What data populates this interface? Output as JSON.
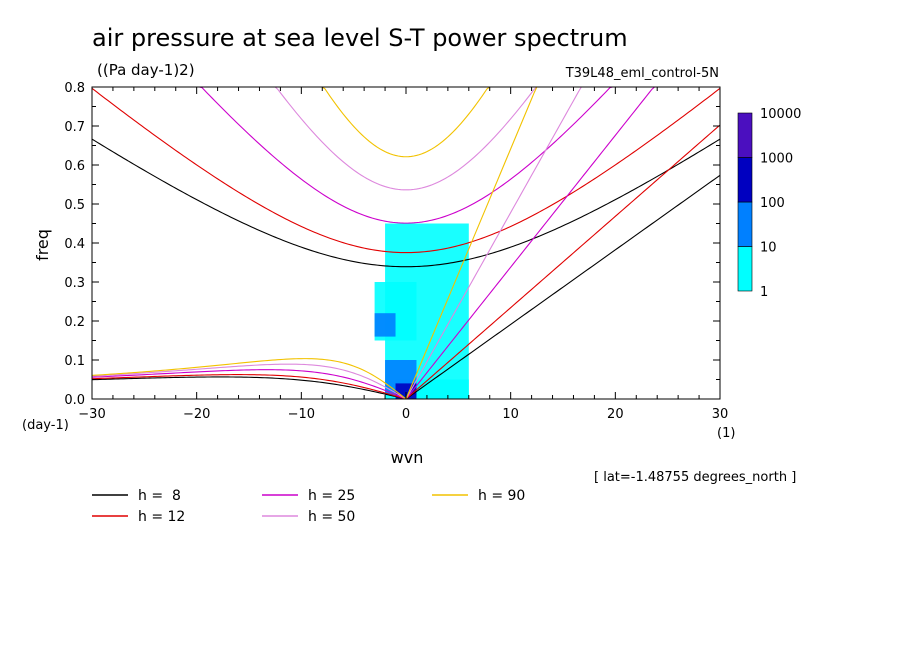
{
  "chart_data": {
    "type": "line",
    "title": "air pressure at sea level S-T power spectrum",
    "units": "((Pa day-1)2)",
    "run_label": "T39L48_eml_control-5N",
    "xlabel": "wvn",
    "ylabel": "freq",
    "x_unit_label": "(1)",
    "y_unit_label": "(day-1)",
    "footnote": "[ lat=-1.48755 degrees_north ]",
    "xlim": [
      -30,
      30
    ],
    "ylim": [
      0,
      0.8
    ],
    "xticks": [
      -30,
      -20,
      -10,
      0,
      10,
      20,
      30
    ],
    "yticks": [
      0.0,
      0.1,
      0.2,
      0.3,
      0.4,
      0.5,
      0.6,
      0.7,
      0.8
    ],
    "grid": false,
    "legend_placement": "bottom",
    "colorbar": {
      "levels": [
        "1",
        "10",
        "100",
        "1000",
        "10000"
      ],
      "colors": [
        "#00ffff",
        "#0080ff",
        "#0000c0",
        "#4b0fbf"
      ],
      "scale": "log"
    },
    "dispersion_curves": [
      {
        "name": "h =  8",
        "h": 8,
        "color": "#000000"
      },
      {
        "name": "h = 12",
        "h": 12,
        "color": "#e00000"
      },
      {
        "name": "h = 25",
        "h": 25,
        "color": "#cc00cc"
      },
      {
        "name": "h = 50",
        "h": 50,
        "color": "#dd88dd"
      },
      {
        "name": "h = 90",
        "h": 90,
        "color": "#f2c200"
      }
    ],
    "power_regions": [
      {
        "level": "1-10",
        "wvn": [
          -2,
          6
        ],
        "freq": [
          0.0,
          0.45
        ]
      },
      {
        "level": "1-10",
        "wvn": [
          -3,
          1
        ],
        "freq": [
          0.15,
          0.3
        ]
      },
      {
        "level": "1-10",
        "wvn": [
          -1,
          6
        ],
        "freq": [
          0.0,
          0.05
        ]
      },
      {
        "level": "10-100",
        "wvn": [
          -2,
          1
        ],
        "freq": [
          0.01,
          0.1
        ]
      },
      {
        "level": "10-100",
        "wvn": [
          -3,
          -1
        ],
        "freq": [
          0.16,
          0.22
        ]
      },
      {
        "level": "100-1000",
        "wvn": [
          -1,
          1
        ],
        "freq": [
          0.0,
          0.04
        ]
      }
    ]
  }
}
